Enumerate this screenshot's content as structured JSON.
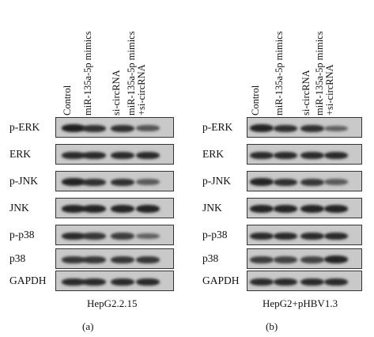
{
  "lanes": [
    "Control",
    "miR-135a-5p mimics",
    "si-circRNA",
    "miR-135a-5p mimics\n+si-circRNA"
  ],
  "panels": [
    {
      "letter": "(a)",
      "cell_line": "HepG2.2.15",
      "rows": [
        {
          "label": "p-ERK",
          "bands": [
            1.0,
            0.85,
            0.85,
            0.55
          ]
        },
        {
          "label": "ERK",
          "bands": [
            0.9,
            0.9,
            0.9,
            0.9
          ]
        },
        {
          "label": "p-JNK",
          "bands": [
            0.95,
            0.85,
            0.85,
            0.5
          ]
        },
        {
          "label": "JNK",
          "bands": [
            0.95,
            0.95,
            0.95,
            0.95
          ]
        },
        {
          "label": "p-p38",
          "bands": [
            0.9,
            0.8,
            0.75,
            0.45
          ]
        },
        {
          "label": "p38",
          "bands": [
            0.8,
            0.8,
            0.8,
            0.8
          ]
        },
        {
          "label": "GAPDH",
          "bands": [
            0.9,
            0.9,
            0.9,
            0.9
          ]
        }
      ]
    },
    {
      "letter": "(b)",
      "cell_line": "HepG2+pHBV1.3",
      "rows": [
        {
          "label": "p-ERK",
          "bands": [
            0.95,
            0.85,
            0.85,
            0.45
          ]
        },
        {
          "label": "ERK",
          "bands": [
            0.9,
            0.9,
            0.9,
            0.9
          ]
        },
        {
          "label": "p-JNK",
          "bands": [
            0.95,
            0.85,
            0.8,
            0.5
          ]
        },
        {
          "label": "JNK",
          "bands": [
            0.95,
            0.95,
            0.95,
            0.95
          ]
        },
        {
          "label": "p-p38",
          "bands": [
            0.9,
            0.9,
            0.9,
            0.9
          ]
        },
        {
          "label": "p38",
          "bands": [
            0.75,
            0.7,
            0.7,
            0.95
          ]
        },
        {
          "label": "GAPDH",
          "bands": [
            0.9,
            0.9,
            0.9,
            0.9
          ]
        }
      ]
    }
  ]
}
